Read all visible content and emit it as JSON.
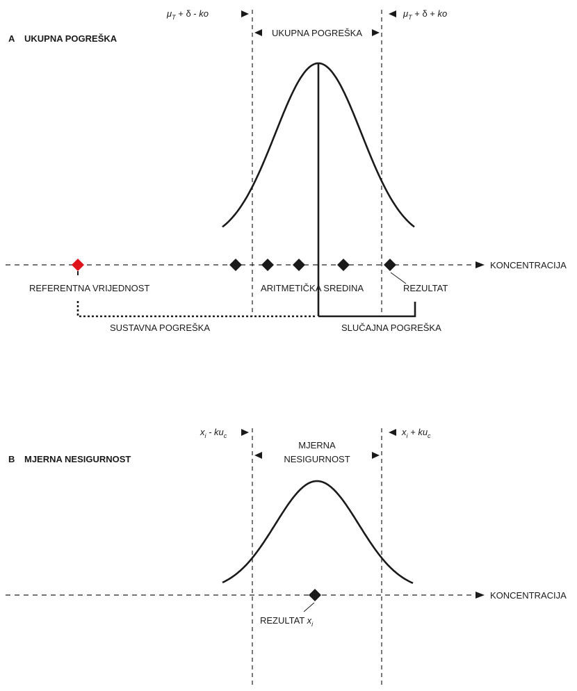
{
  "panel_a": {
    "letter": "A",
    "title": "UKUPNA POGREŠKA",
    "left_bound": {
      "prefix": "μ",
      "sub": "T",
      "suffix": " + δ - ",
      "k": "ko"
    },
    "right_bound": {
      "prefix": "μ",
      "sub": "T",
      "suffix": " + δ + ",
      "k": "ko"
    },
    "span_label": "UKUPNA POGREŠKA",
    "axis_label": "KONCENTRACIJA",
    "reference_label": "REFERENTNA VRIJEDNOST",
    "mean_label": "ARITMETIČKA SREDINA",
    "result_label": "REZULTAT",
    "systematic_label": "SUSTAVNA POGREŠKA",
    "random_label": "SLUČAJNA POGREŠKA",
    "reference_color": "#e0121b",
    "marker_color": "#1a1a1a"
  },
  "panel_b": {
    "letter": "B",
    "title": "MJERNA NESIGURNOST",
    "left_bound": {
      "x": "x",
      "sub": "i",
      "suffix": " - ku",
      "sub2": "c"
    },
    "right_bound": {
      "x": "x",
      "sub": "i",
      "suffix": " + ku",
      "sub2": "c"
    },
    "span_label_line1": "MJERNA",
    "span_label_line2": "NESIGURNOST",
    "axis_label": "KONCENTRACIJA",
    "result_label": "REZULTAT ",
    "result_var": "x",
    "result_sub": "i"
  }
}
